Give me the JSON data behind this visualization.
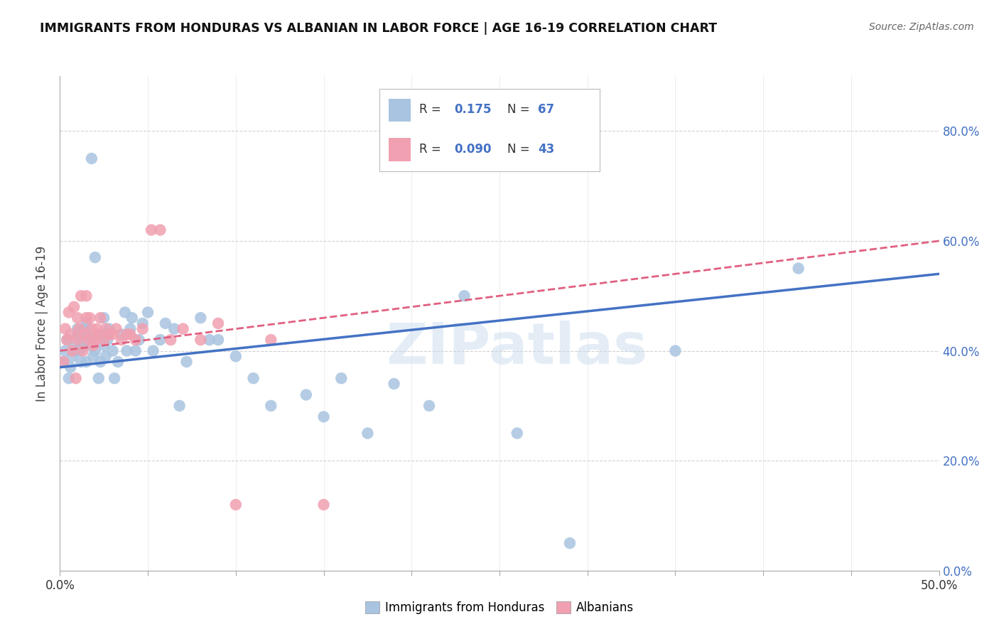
{
  "title": "IMMIGRANTS FROM HONDURAS VS ALBANIAN IN LABOR FORCE | AGE 16-19 CORRELATION CHART",
  "source": "Source: ZipAtlas.com",
  "ylabel": "In Labor Force | Age 16-19",
  "xlim": [
    0.0,
    0.5
  ],
  "ylim": [
    0.0,
    0.9
  ],
  "xticks": [
    0.0,
    0.05,
    0.1,
    0.15,
    0.2,
    0.25,
    0.3,
    0.35,
    0.4,
    0.45,
    0.5
  ],
  "yticks": [
    0.0,
    0.2,
    0.4,
    0.6,
    0.8
  ],
  "background_color": "#ffffff",
  "grid_color": "#dddddd",
  "color_honduras": "#a8c4e0",
  "color_albanian": "#f0a0b0",
  "color_line_honduras": "#4472c4",
  "color_line_albanian": "#e06080",
  "honduras_x": [
    0.002,
    0.003,
    0.004,
    0.005,
    0.006,
    0.007,
    0.008,
    0.009,
    0.01,
    0.01,
    0.011,
    0.012,
    0.012,
    0.013,
    0.014,
    0.015,
    0.015,
    0.016,
    0.017,
    0.018,
    0.019,
    0.02,
    0.02,
    0.021,
    0.022,
    0.023,
    0.024,
    0.025,
    0.025,
    0.026,
    0.027,
    0.028,
    0.03,
    0.031,
    0.033,
    0.035,
    0.037,
    0.038,
    0.04,
    0.041,
    0.043,
    0.045,
    0.047,
    0.05,
    0.053,
    0.057,
    0.06,
    0.065,
    0.068,
    0.072,
    0.08,
    0.085,
    0.09,
    0.1,
    0.11,
    0.12,
    0.14,
    0.15,
    0.16,
    0.175,
    0.19,
    0.21,
    0.23,
    0.26,
    0.29,
    0.35,
    0.42
  ],
  "honduras_y": [
    0.38,
    0.4,
    0.42,
    0.35,
    0.37,
    0.39,
    0.41,
    0.4,
    0.43,
    0.44,
    0.4,
    0.38,
    0.42,
    0.41,
    0.44,
    0.45,
    0.38,
    0.43,
    0.41,
    0.75,
    0.39,
    0.57,
    0.4,
    0.42,
    0.35,
    0.38,
    0.43,
    0.41,
    0.46,
    0.39,
    0.42,
    0.44,
    0.4,
    0.35,
    0.38,
    0.43,
    0.47,
    0.4,
    0.44,
    0.46,
    0.4,
    0.42,
    0.45,
    0.47,
    0.4,
    0.42,
    0.45,
    0.44,
    0.3,
    0.38,
    0.46,
    0.42,
    0.42,
    0.39,
    0.35,
    0.3,
    0.32,
    0.28,
    0.35,
    0.25,
    0.34,
    0.3,
    0.5,
    0.25,
    0.05,
    0.4,
    0.55
  ],
  "albanian_x": [
    0.002,
    0.003,
    0.004,
    0.005,
    0.006,
    0.007,
    0.008,
    0.009,
    0.01,
    0.01,
    0.011,
    0.012,
    0.013,
    0.014,
    0.015,
    0.015,
    0.016,
    0.017,
    0.018,
    0.019,
    0.02,
    0.021,
    0.022,
    0.023,
    0.025,
    0.026,
    0.028,
    0.03,
    0.032,
    0.035,
    0.038,
    0.04,
    0.043,
    0.047,
    0.052,
    0.057,
    0.063,
    0.07,
    0.08,
    0.09,
    0.1,
    0.12,
    0.15
  ],
  "albanian_y": [
    0.38,
    0.44,
    0.42,
    0.47,
    0.43,
    0.4,
    0.48,
    0.35,
    0.42,
    0.46,
    0.44,
    0.5,
    0.4,
    0.43,
    0.46,
    0.5,
    0.42,
    0.46,
    0.44,
    0.41,
    0.42,
    0.44,
    0.43,
    0.46,
    0.42,
    0.44,
    0.43,
    0.43,
    0.44,
    0.42,
    0.43,
    0.43,
    0.42,
    0.44,
    0.62,
    0.62,
    0.42,
    0.44,
    0.42,
    0.45,
    0.12,
    0.42,
    0.12
  ],
  "trendline_honduras": [
    0.37,
    0.54
  ],
  "trendline_albanian": [
    0.4,
    0.6
  ]
}
